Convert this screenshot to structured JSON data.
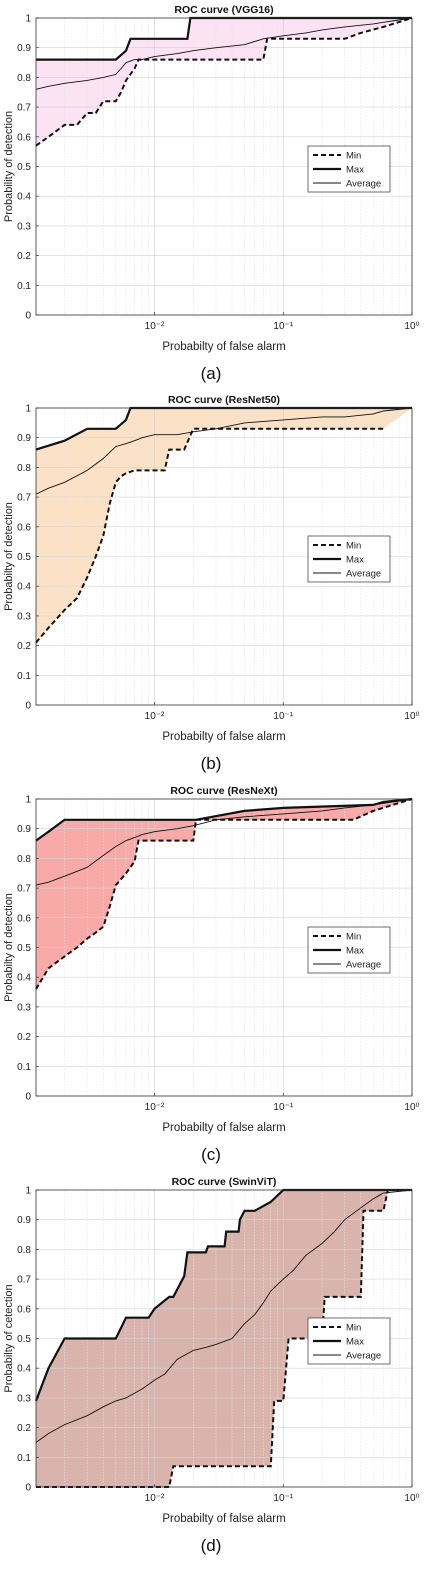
{
  "chart_data": [
    {
      "type": "line",
      "panel_label": "(a)",
      "title": "ROC curve (VGG16)",
      "xlabel": "Probabilty of false alarm",
      "ylabel": "Probability of detection",
      "xscale": "log",
      "xlim": [
        0.0012,
        1
      ],
      "ylim": [
        0,
        1
      ],
      "yticks": [
        "0",
        "0.1",
        "0.2",
        "0.3",
        "0.4",
        "0.5",
        "0.6",
        "0.7",
        "0.8",
        "0.9",
        "1"
      ],
      "xticks": [
        {
          "value": 0.01,
          "label": "10⁻²"
        },
        {
          "value": 0.1,
          "label": "10⁻¹"
        },
        {
          "value": 1,
          "label": "10⁰"
        }
      ],
      "grid": true,
      "fill_color": "#fbe3f3",
      "legend_position": "right",
      "legend": [
        "Min",
        "Max",
        "Average"
      ],
      "series": [
        {
          "name": "Min",
          "style": "dashed",
          "x": [
            0.0012,
            0.0015,
            0.002,
            0.0025,
            0.003,
            0.0035,
            0.004,
            0.005,
            0.0055,
            0.006,
            0.007,
            0.0075,
            0.009,
            0.012,
            0.02,
            0.03,
            0.05,
            0.07,
            0.075,
            0.1,
            0.2,
            0.3,
            0.4,
            0.6,
            1
          ],
          "y": [
            0.57,
            0.6,
            0.64,
            0.64,
            0.68,
            0.68,
            0.72,
            0.72,
            0.75,
            0.79,
            0.83,
            0.86,
            0.86,
            0.86,
            0.86,
            0.86,
            0.86,
            0.86,
            0.93,
            0.93,
            0.93,
            0.93,
            0.95,
            0.97,
            1.0
          ]
        },
        {
          "name": "Max",
          "style": "thick",
          "x": [
            0.0012,
            0.005,
            0.006,
            0.0065,
            0.01,
            0.018,
            0.019,
            0.04,
            0.1,
            1
          ],
          "y": [
            0.86,
            0.86,
            0.89,
            0.93,
            0.93,
            0.93,
            1.0,
            1.0,
            1.0,
            1.0
          ]
        },
        {
          "name": "Average",
          "style": "thin",
          "x": [
            0.0012,
            0.0015,
            0.002,
            0.003,
            0.004,
            0.005,
            0.0055,
            0.006,
            0.007,
            0.008,
            0.01,
            0.015,
            0.02,
            0.03,
            0.05,
            0.07,
            0.1,
            0.15,
            0.2,
            0.3,
            0.5,
            0.7,
            1
          ],
          "y": [
            0.76,
            0.77,
            0.78,
            0.79,
            0.8,
            0.81,
            0.83,
            0.85,
            0.86,
            0.86,
            0.87,
            0.88,
            0.89,
            0.9,
            0.91,
            0.93,
            0.94,
            0.95,
            0.96,
            0.97,
            0.98,
            0.99,
            1.0
          ]
        }
      ]
    },
    {
      "type": "line",
      "panel_label": "(b)",
      "title": "ROC curve (ResNet50)",
      "xlabel": "Probabilty of false alarm",
      "ylabel": "Probabilty of detection",
      "xscale": "log",
      "xlim": [
        0.0012,
        1
      ],
      "ylim": [
        0,
        1
      ],
      "yticks": [
        "0",
        "0.1",
        "0.2",
        "0.3",
        "0.4",
        "0.5",
        "0.6",
        "0.7",
        "0.8",
        "0.9",
        "1"
      ],
      "xticks": [
        {
          "value": 0.01,
          "label": "10⁻²"
        },
        {
          "value": 0.1,
          "label": "10⁻¹"
        },
        {
          "value": 1,
          "label": "10⁰"
        }
      ],
      "grid": true,
      "fill_color": "#fbe2c7",
      "legend_position": "right",
      "legend": [
        "Min",
        "Max",
        "Average"
      ],
      "series": [
        {
          "name": "Min",
          "style": "dashed",
          "x": [
            0.0012,
            0.0015,
            0.002,
            0.0025,
            0.003,
            0.0035,
            0.004,
            0.0045,
            0.005,
            0.0055,
            0.006,
            0.007,
            0.008,
            0.012,
            0.013,
            0.015,
            0.017,
            0.02,
            0.05,
            0.1,
            0.3,
            0.5,
            0.6
          ],
          "y": [
            0.21,
            0.26,
            0.32,
            0.36,
            0.43,
            0.5,
            0.57,
            0.68,
            0.75,
            0.77,
            0.78,
            0.79,
            0.79,
            0.79,
            0.86,
            0.86,
            0.86,
            0.93,
            0.93,
            0.93,
            0.93,
            0.93,
            0.93
          ]
        },
        {
          "name": "Max",
          "style": "thick",
          "x": [
            0.0012,
            0.002,
            0.003,
            0.005,
            0.006,
            0.0065,
            0.01,
            1
          ],
          "y": [
            0.86,
            0.89,
            0.93,
            0.93,
            0.96,
            1.0,
            1.0,
            1.0
          ]
        },
        {
          "name": "Average",
          "style": "thin",
          "x": [
            0.0012,
            0.0015,
            0.002,
            0.003,
            0.004,
            0.005,
            0.006,
            0.007,
            0.008,
            0.01,
            0.015,
            0.02,
            0.03,
            0.05,
            0.1,
            0.2,
            0.3,
            0.5,
            0.6,
            1
          ],
          "y": [
            0.71,
            0.73,
            0.75,
            0.79,
            0.83,
            0.87,
            0.88,
            0.89,
            0.9,
            0.91,
            0.91,
            0.92,
            0.93,
            0.95,
            0.96,
            0.97,
            0.97,
            0.98,
            0.99,
            1.0
          ]
        }
      ]
    },
    {
      "type": "line",
      "panel_label": "(c)",
      "title": "ROC curve (ResNeXt)",
      "xlabel": "Probabilty of false alarm",
      "ylabel": "Probabilty of detection",
      "xscale": "log",
      "xlim": [
        0.0012,
        1
      ],
      "ylim": [
        0,
        1
      ],
      "yticks": [
        "0",
        "0.1",
        "0.2",
        "0.3",
        "0.4",
        "0.5",
        "0.6",
        "0.7",
        "0.8",
        "0.9",
        "1"
      ],
      "xticks": [
        {
          "value": 0.01,
          "label": "10⁻²"
        },
        {
          "value": 0.1,
          "label": "10⁻¹"
        },
        {
          "value": 1,
          "label": "10⁰"
        }
      ],
      "grid": true,
      "fill_color": "#f7aaa8",
      "legend_position": "right",
      "legend": [
        "Min",
        "Max",
        "Average"
      ],
      "series": [
        {
          "name": "Min",
          "style": "dashed",
          "x": [
            0.0012,
            0.0015,
            0.002,
            0.0025,
            0.003,
            0.0035,
            0.004,
            0.0045,
            0.005,
            0.006,
            0.007,
            0.0075,
            0.01,
            0.015,
            0.02,
            0.021,
            0.05,
            0.1,
            0.2,
            0.3,
            0.35,
            0.5,
            1
          ],
          "y": [
            0.36,
            0.43,
            0.47,
            0.5,
            0.53,
            0.55,
            0.57,
            0.64,
            0.71,
            0.75,
            0.79,
            0.86,
            0.86,
            0.86,
            0.86,
            0.93,
            0.93,
            0.93,
            0.93,
            0.93,
            0.93,
            0.96,
            1.0
          ]
        },
        {
          "name": "Max",
          "style": "thick",
          "x": [
            0.0012,
            0.0015,
            0.002,
            0.005,
            0.01,
            0.015,
            0.02,
            0.021,
            0.05,
            0.1,
            0.5,
            0.6,
            1
          ],
          "y": [
            0.86,
            0.89,
            0.93,
            0.93,
            0.93,
            0.93,
            0.93,
            0.93,
            0.96,
            0.97,
            0.98,
            0.99,
            1.0
          ]
        },
        {
          "name": "Average",
          "style": "thin",
          "x": [
            0.0012,
            0.0015,
            0.002,
            0.003,
            0.004,
            0.005,
            0.006,
            0.007,
            0.008,
            0.01,
            0.015,
            0.02,
            0.03,
            0.05,
            0.1,
            0.2,
            0.3,
            0.5,
            0.7,
            1
          ],
          "y": [
            0.71,
            0.72,
            0.74,
            0.77,
            0.81,
            0.84,
            0.86,
            0.87,
            0.88,
            0.89,
            0.9,
            0.91,
            0.93,
            0.94,
            0.95,
            0.96,
            0.97,
            0.98,
            0.99,
            1.0
          ]
        }
      ]
    },
    {
      "type": "line",
      "panel_label": "(d)",
      "title": "ROC curve (SwinViT)",
      "xlabel": "Probabilty of false alarm",
      "ylabel": "Probabilty of cetection",
      "xscale": "log",
      "xlim": [
        0.0012,
        1
      ],
      "ylim": [
        0,
        1
      ],
      "yticks": [
        "0",
        "0.1",
        "0.2",
        "0.3",
        "0.4",
        "0.5",
        "0.6",
        "0.7",
        "0.8",
        "0.9",
        "1"
      ],
      "xticks": [
        {
          "value": 0.01,
          "label": "10⁻²"
        },
        {
          "value": 0.1,
          "label": "10⁻¹"
        },
        {
          "value": 1,
          "label": "10⁰"
        }
      ],
      "grid": true,
      "fill_color": "#d9b4ad",
      "legend_position": "right",
      "legend": [
        "Min",
        "Max",
        "Average"
      ],
      "series": [
        {
          "name": "Min",
          "style": "dashed",
          "x": [
            0.0012,
            0.005,
            0.013,
            0.014,
            0.05,
            0.08,
            0.085,
            0.1,
            0.11,
            0.2,
            0.21,
            0.4,
            0.42,
            0.6,
            0.65,
            1
          ],
          "y": [
            0.0,
            0.0,
            0.0,
            0.07,
            0.07,
            0.07,
            0.29,
            0.29,
            0.5,
            0.5,
            0.64,
            0.64,
            0.93,
            0.93,
            1.0,
            1.0
          ]
        },
        {
          "name": "Max",
          "style": "thick",
          "x": [
            0.0012,
            0.0015,
            0.002,
            0.005,
            0.006,
            0.009,
            0.01,
            0.013,
            0.014,
            0.017,
            0.018,
            0.025,
            0.026,
            0.035,
            0.036,
            0.045,
            0.046,
            0.05,
            0.055,
            0.06,
            0.08,
            0.1,
            0.2,
            1
          ],
          "y": [
            0.29,
            0.4,
            0.5,
            0.5,
            0.57,
            0.57,
            0.6,
            0.64,
            0.64,
            0.71,
            0.79,
            0.79,
            0.81,
            0.81,
            0.86,
            0.86,
            0.9,
            0.93,
            0.93,
            0.93,
            0.96,
            1.0,
            1.0,
            1.0
          ]
        },
        {
          "name": "Average",
          "style": "thin",
          "x": [
            0.0012,
            0.0015,
            0.002,
            0.003,
            0.004,
            0.005,
            0.006,
            0.008,
            0.01,
            0.012,
            0.015,
            0.02,
            0.025,
            0.03,
            0.04,
            0.05,
            0.06,
            0.07,
            0.08,
            0.1,
            0.12,
            0.15,
            0.2,
            0.25,
            0.3,
            0.4,
            0.5,
            0.6,
            1
          ],
          "y": [
            0.15,
            0.18,
            0.21,
            0.24,
            0.27,
            0.29,
            0.3,
            0.33,
            0.36,
            0.38,
            0.43,
            0.46,
            0.47,
            0.48,
            0.5,
            0.55,
            0.58,
            0.62,
            0.66,
            0.7,
            0.73,
            0.78,
            0.82,
            0.86,
            0.9,
            0.94,
            0.97,
            0.99,
            1.0
          ]
        }
      ]
    }
  ]
}
